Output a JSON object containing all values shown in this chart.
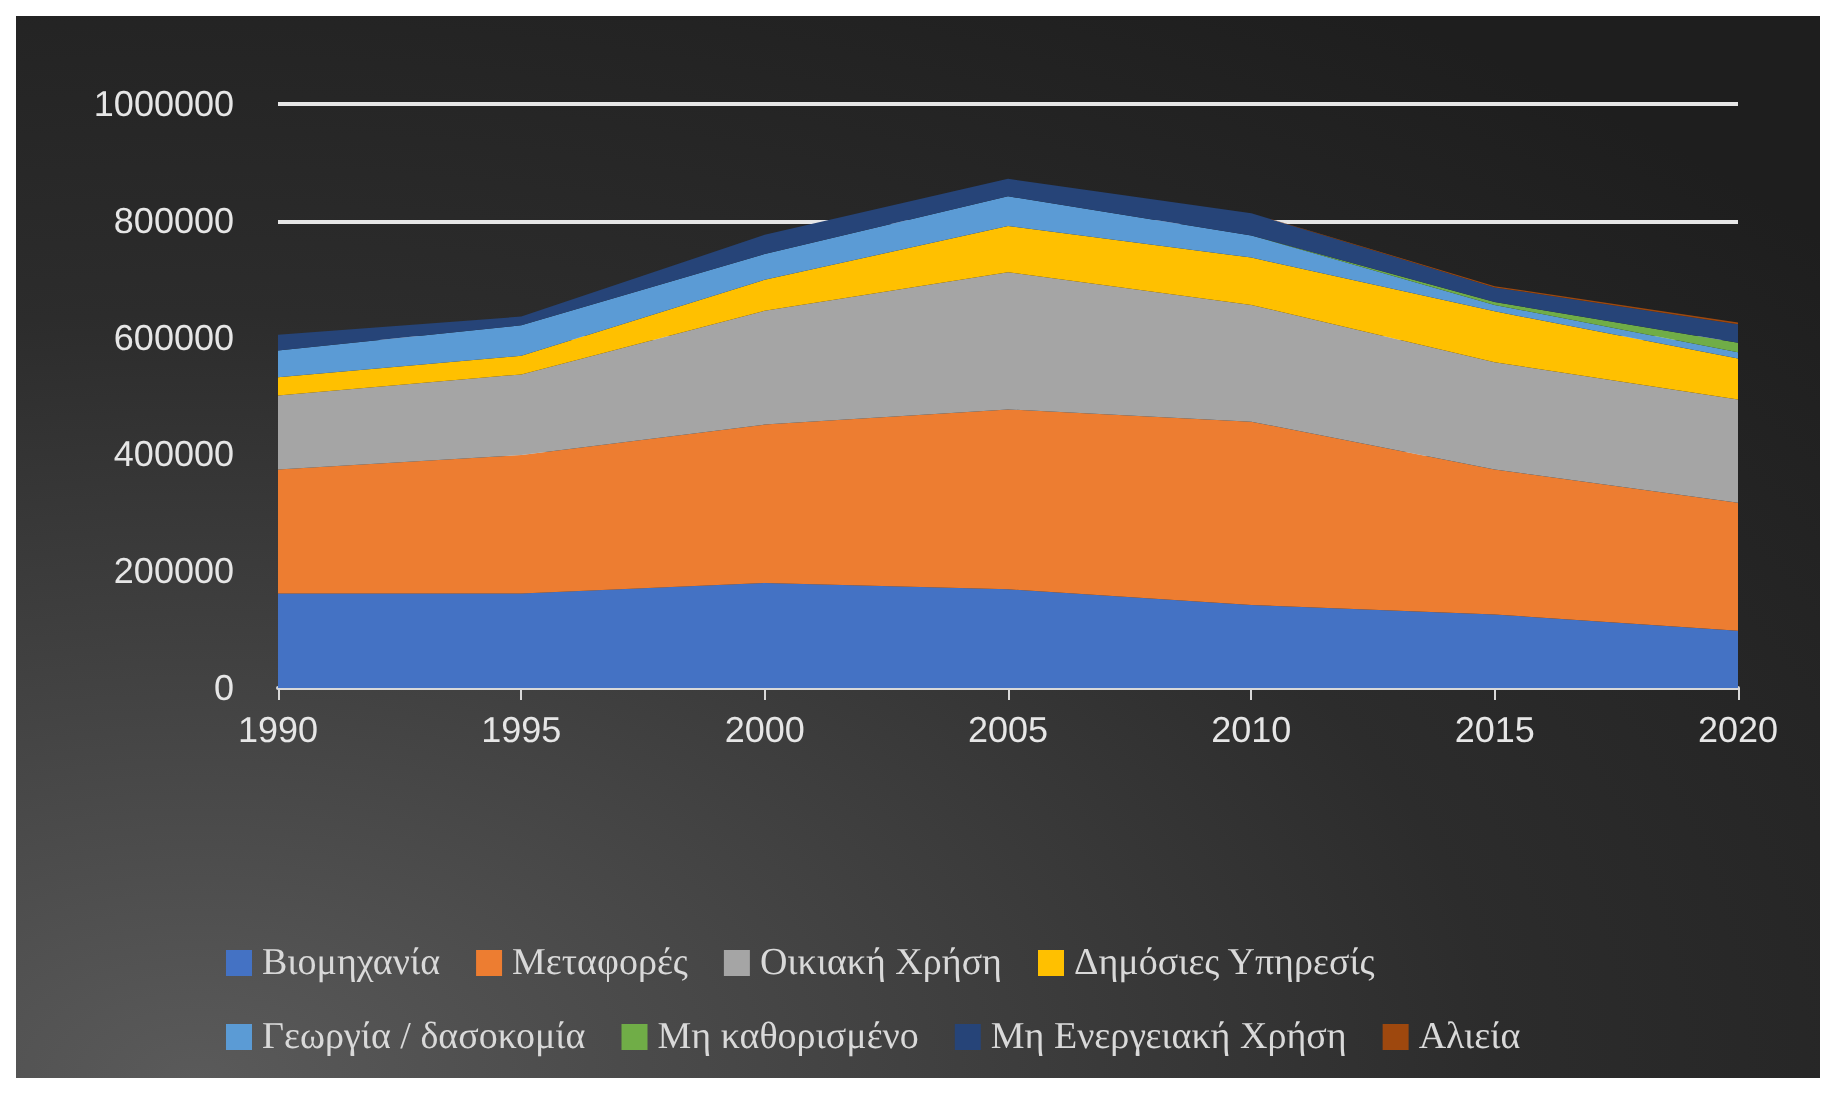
{
  "chart_data": {
    "type": "area",
    "stacked": true,
    "categories": [
      "1990",
      "1995",
      "2000",
      "2005",
      "2010",
      "2015",
      "2020"
    ],
    "ylim": [
      0,
      1000000
    ],
    "yticks": [
      0,
      200000,
      400000,
      600000,
      800000,
      1000000
    ],
    "grid": "y",
    "legend": "bottom",
    "series": [
      {
        "name": "Βιομηχανία",
        "color": "#4472c4",
        "values": [
          162000,
          162000,
          180000,
          169000,
          142000,
          126000,
          98000
        ]
      },
      {
        "name": "Μεταφορές",
        "color": "#ed7d31",
        "values": [
          212000,
          237000,
          271000,
          308000,
          314000,
          248000,
          219000
        ]
      },
      {
        "name": "Οικιακή Χρήση",
        "color": "#a5a5a5",
        "values": [
          127000,
          138000,
          195000,
          235000,
          200000,
          184000,
          177000
        ]
      },
      {
        "name": "Δημόσιες Υπηρεσίς",
        "color": "#ffc000",
        "values": [
          31000,
          32000,
          53000,
          79000,
          81000,
          87000,
          70000
        ]
      },
      {
        "name": "Γεωργία / δασοκομία",
        "color": "#5b9bd5",
        "values": [
          46000,
          52000,
          44000,
          51000,
          38000,
          11000,
          11000
        ]
      },
      {
        "name": "Μη καθορισμένο",
        "color": "#70ad47",
        "values": [
          0,
          0,
          0,
          0,
          0,
          5000,
          16000
        ]
      },
      {
        "name": "Μη Ενεργειακή Χρήση",
        "color": "#264478",
        "values": [
          27000,
          15000,
          33000,
          30000,
          38000,
          25000,
          32000
        ]
      },
      {
        "name": "Αλιεία",
        "color": "#9e480e",
        "values": [
          0,
          0,
          0,
          0,
          0,
          2000,
          3000
        ]
      }
    ]
  }
}
